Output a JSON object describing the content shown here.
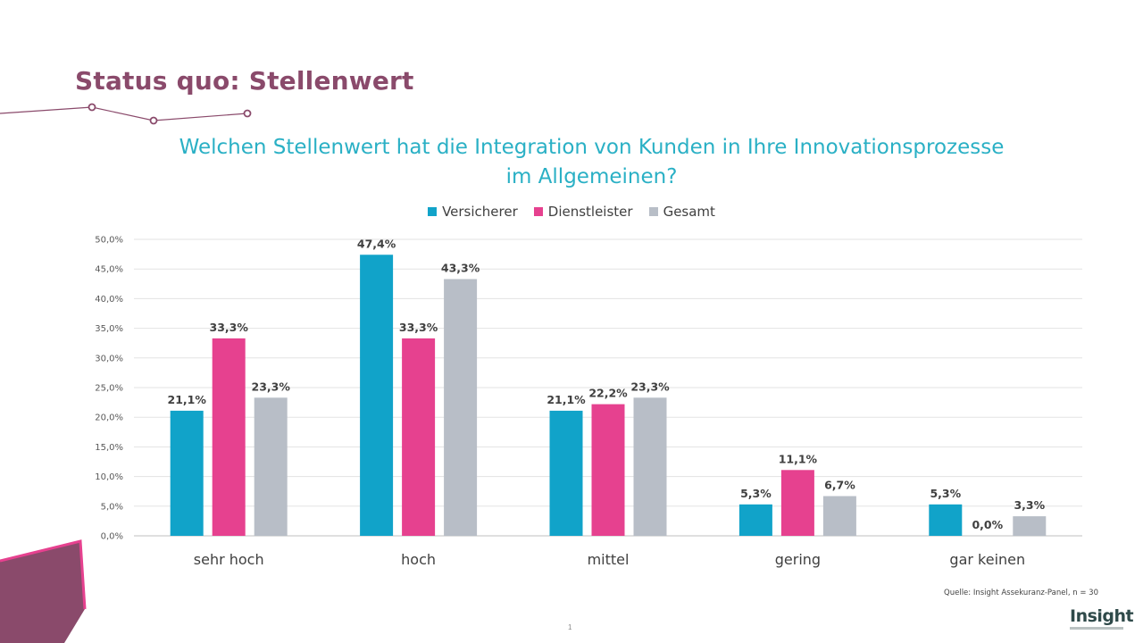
{
  "slide": {
    "title": "Status quo: Stellenwert",
    "source": "Quelle: Insight Assekuranz-Panel, n = 30",
    "page_number": "1",
    "logo_text": "Insight"
  },
  "chart_data": {
    "type": "bar",
    "title": "Welchen Stellenwert hat die Integration von Kunden in Ihre Innovationsprozesse im Allgemeinen?",
    "categories": [
      "sehr hoch",
      "hoch",
      "mittel",
      "gering",
      "gar keinen"
    ],
    "series": [
      {
        "name": "Versicherer",
        "color": "#11a3c9",
        "values": [
          21.1,
          47.4,
          21.1,
          5.3,
          5.3
        ]
      },
      {
        "name": "Dienstleister",
        "color": "#e6418f",
        "values": [
          33.3,
          33.3,
          22.2,
          11.1,
          0.0
        ]
      },
      {
        "name": "Gesamt",
        "color": "#b8bec7",
        "values": [
          23.3,
          43.3,
          23.3,
          6.7,
          3.3
        ]
      }
    ],
    "ylim": [
      0,
      50
    ],
    "yticks": [
      "0,0%",
      "5,0%",
      "10,0%",
      "15,0%",
      "20,0%",
      "25,0%",
      "30,0%",
      "35,0%",
      "40,0%",
      "45,0%",
      "50,0%"
    ],
    "value_format": "percent_one_decimal_comma",
    "grid": true,
    "legend_position": "top-center"
  }
}
